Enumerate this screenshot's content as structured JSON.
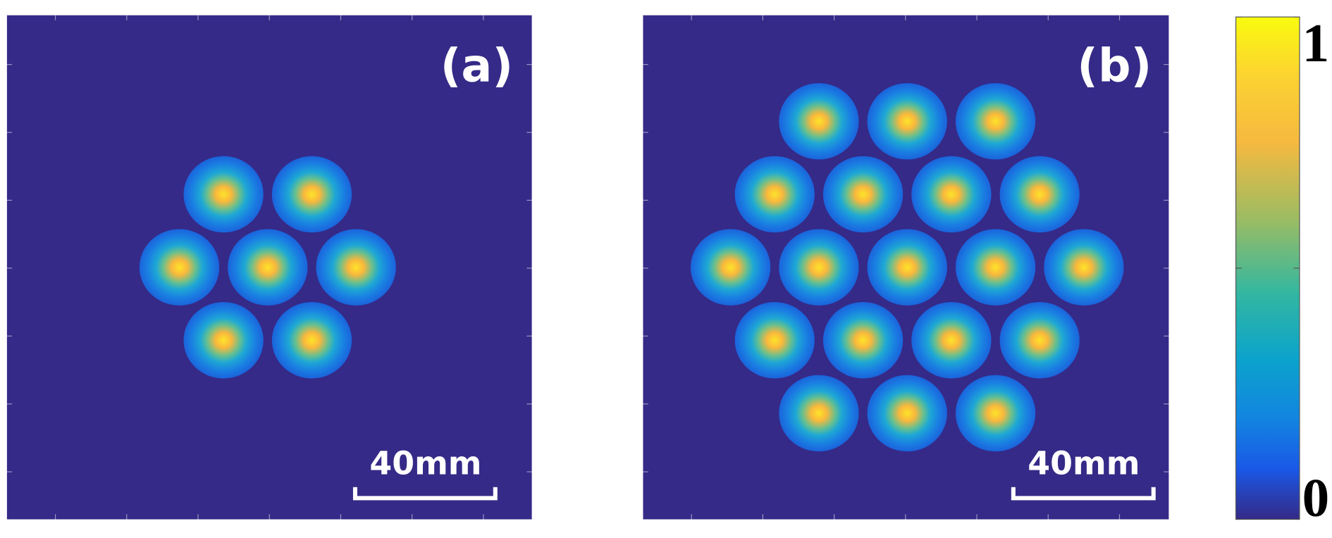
{
  "panels": [
    {
      "label": "(a)",
      "scale_bar": "40mm"
    },
    {
      "label": "(b)",
      "scale_bar": "40mm"
    }
  ],
  "colorbar": {
    "max_label": 1,
    "min_label": 0
  }
}
